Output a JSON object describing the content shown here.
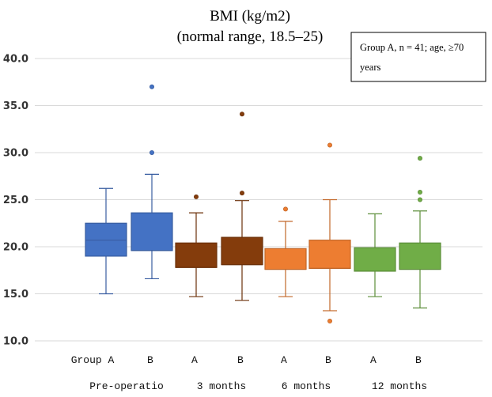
{
  "chart_data": {
    "type": "box",
    "title": "BMI (kg/m2)",
    "subtitle": "(normal range, 18.5–25)",
    "ylim": [
      10.0,
      40.0
    ],
    "yticks": [
      "40.0",
      "35.0",
      "30.0",
      "25.0",
      "20.0",
      "15.0",
      "10.0"
    ],
    "grid": true,
    "legend_text": [
      "Group  A,  n  =  41;  age,  ≥70",
      "years"
    ],
    "group_labels": [
      "Group A",
      "B",
      "A",
      "B",
      "A",
      "B",
      "A",
      "B"
    ],
    "time_labels": [
      "Pre-operatio",
      "3 months",
      "6 months",
      "12 months"
    ],
    "boxes": [
      {
        "group": "A",
        "time": "Pre-operatio",
        "color": "#4472C4",
        "min": 15.0,
        "q1": 19.0,
        "median": 20.7,
        "q3": 22.5,
        "max": 26.2,
        "outliers": []
      },
      {
        "group": "B",
        "time": "Pre-operatio",
        "color": "#4472C4",
        "min": 16.6,
        "q1": 19.6,
        "median": 19.6,
        "q3": 23.6,
        "max": 27.7,
        "outliers": [
          30.0,
          37.0
        ]
      },
      {
        "group": "A",
        "time": "3 months",
        "color": "#843C0C",
        "min": 14.7,
        "q1": 17.8,
        "median": 17.8,
        "q3": 20.4,
        "max": 23.6,
        "outliers": [
          25.3
        ]
      },
      {
        "group": "B",
        "time": "3 months",
        "color": "#843C0C",
        "min": 14.3,
        "q1": 18.1,
        "median": 18.1,
        "q3": 21.0,
        "max": 24.9,
        "outliers": [
          25.7,
          34.1
        ]
      },
      {
        "group": "A",
        "time": "6 months",
        "color": "#ED7D31",
        "min": 14.7,
        "q1": 17.6,
        "median": 17.6,
        "q3": 19.8,
        "max": 22.7,
        "outliers": [
          24.0
        ]
      },
      {
        "group": "B",
        "time": "6 months",
        "color": "#ED7D31",
        "min": 13.2,
        "q1": 17.7,
        "median": 17.7,
        "q3": 20.7,
        "max": 25.0,
        "outliers": [
          12.1,
          30.8
        ]
      },
      {
        "group": "A",
        "time": "12 months",
        "color": "#70AD47",
        "min": 14.7,
        "q1": 17.4,
        "median": 17.4,
        "q3": 19.9,
        "max": 23.5,
        "outliers": []
      },
      {
        "group": "B",
        "time": "12 months",
        "color": "#70AD47",
        "min": 13.5,
        "q1": 17.6,
        "median": 17.6,
        "q3": 20.4,
        "max": 23.8,
        "outliers": [
          25.0,
          25.8,
          29.4
        ]
      }
    ]
  }
}
